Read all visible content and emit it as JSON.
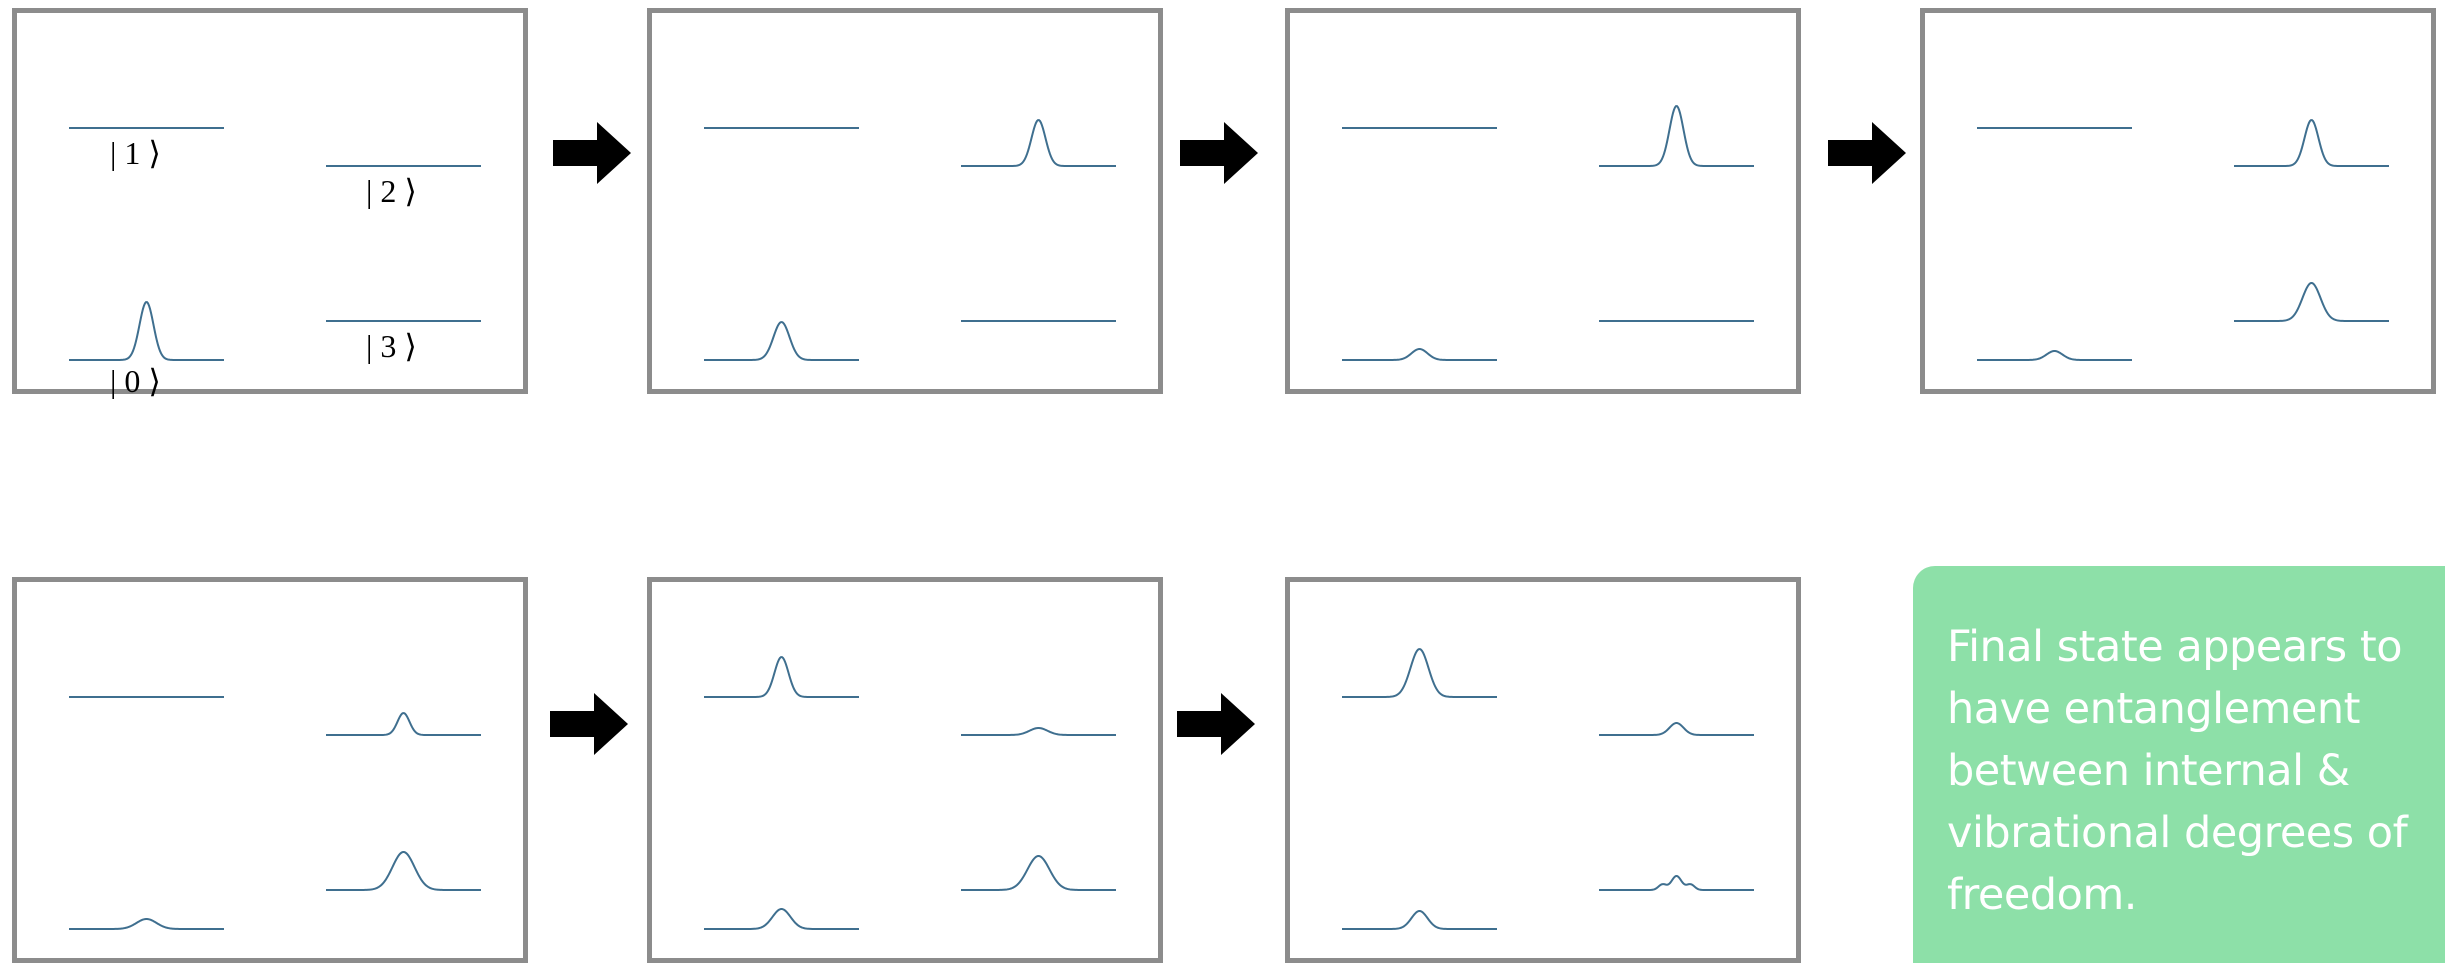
{
  "state_labels": {
    "ket_1": "| 1 ⟩",
    "ket_2": "| 2 ⟩",
    "ket_0": "| 0 ⟩",
    "ket_3": "| 3 ⟩"
  },
  "note": {
    "text": "Final state appears to have entanglement between internal & vibrational degrees of freedom."
  },
  "colors": {
    "curve": "#3f6f8f",
    "frame": "#8c8c8c",
    "arrow": "#000000",
    "note_background": "#8de0a8",
    "note_text": "#ffffff"
  },
  "panels": [
    {
      "level_1": {
        "peak": 0,
        "width": 0
      },
      "level_2": {
        "peak": 0,
        "width": 0
      },
      "level_0": {
        "peak": 58,
        "width": 7
      },
      "level_3": {
        "peak": 0,
        "width": 0
      }
    },
    {
      "level_1": {
        "peak": 0,
        "width": 0
      },
      "level_2": {
        "peak": 46,
        "width": 7
      },
      "level_0": {
        "peak": 38,
        "width": 8
      },
      "level_3": {
        "peak": 0,
        "width": 0
      }
    },
    {
      "level_1": {
        "peak": 0,
        "width": 0
      },
      "level_2": {
        "peak": 60,
        "width": 7
      },
      "level_0": {
        "peak": 11,
        "width": 8
      },
      "level_3": {
        "peak": 0,
        "width": 0
      }
    },
    {
      "level_1": {
        "peak": 0,
        "width": 0
      },
      "level_2": {
        "peak": 46,
        "width": 7
      },
      "level_0": {
        "peak": 9,
        "width": 8
      },
      "level_3": {
        "peak": 38,
        "width": 9
      }
    },
    {
      "level_1": {
        "peak": 0,
        "width": 0
      },
      "level_2": {
        "peak": 22,
        "width": 6
      },
      "level_0": {
        "peak": 10,
        "width": 10
      },
      "level_3": {
        "peak": 38,
        "width": 11
      }
    },
    {
      "level_1": {
        "peak": 40,
        "width": 7
      },
      "level_2": {
        "peak": 7,
        "width": 9
      },
      "level_0": {
        "peak": 20,
        "width": 9
      },
      "level_3": {
        "peak": 34,
        "width": 11
      }
    },
    {
      "level_1": {
        "peak": 48,
        "width": 9
      },
      "level_2": {
        "peak": 12,
        "width": 7
      },
      "level_0": {
        "peak": 18,
        "width": 8
      },
      "level_3": {
        "peak": 14,
        "width": 5,
        "wiggle": true
      }
    }
  ]
}
